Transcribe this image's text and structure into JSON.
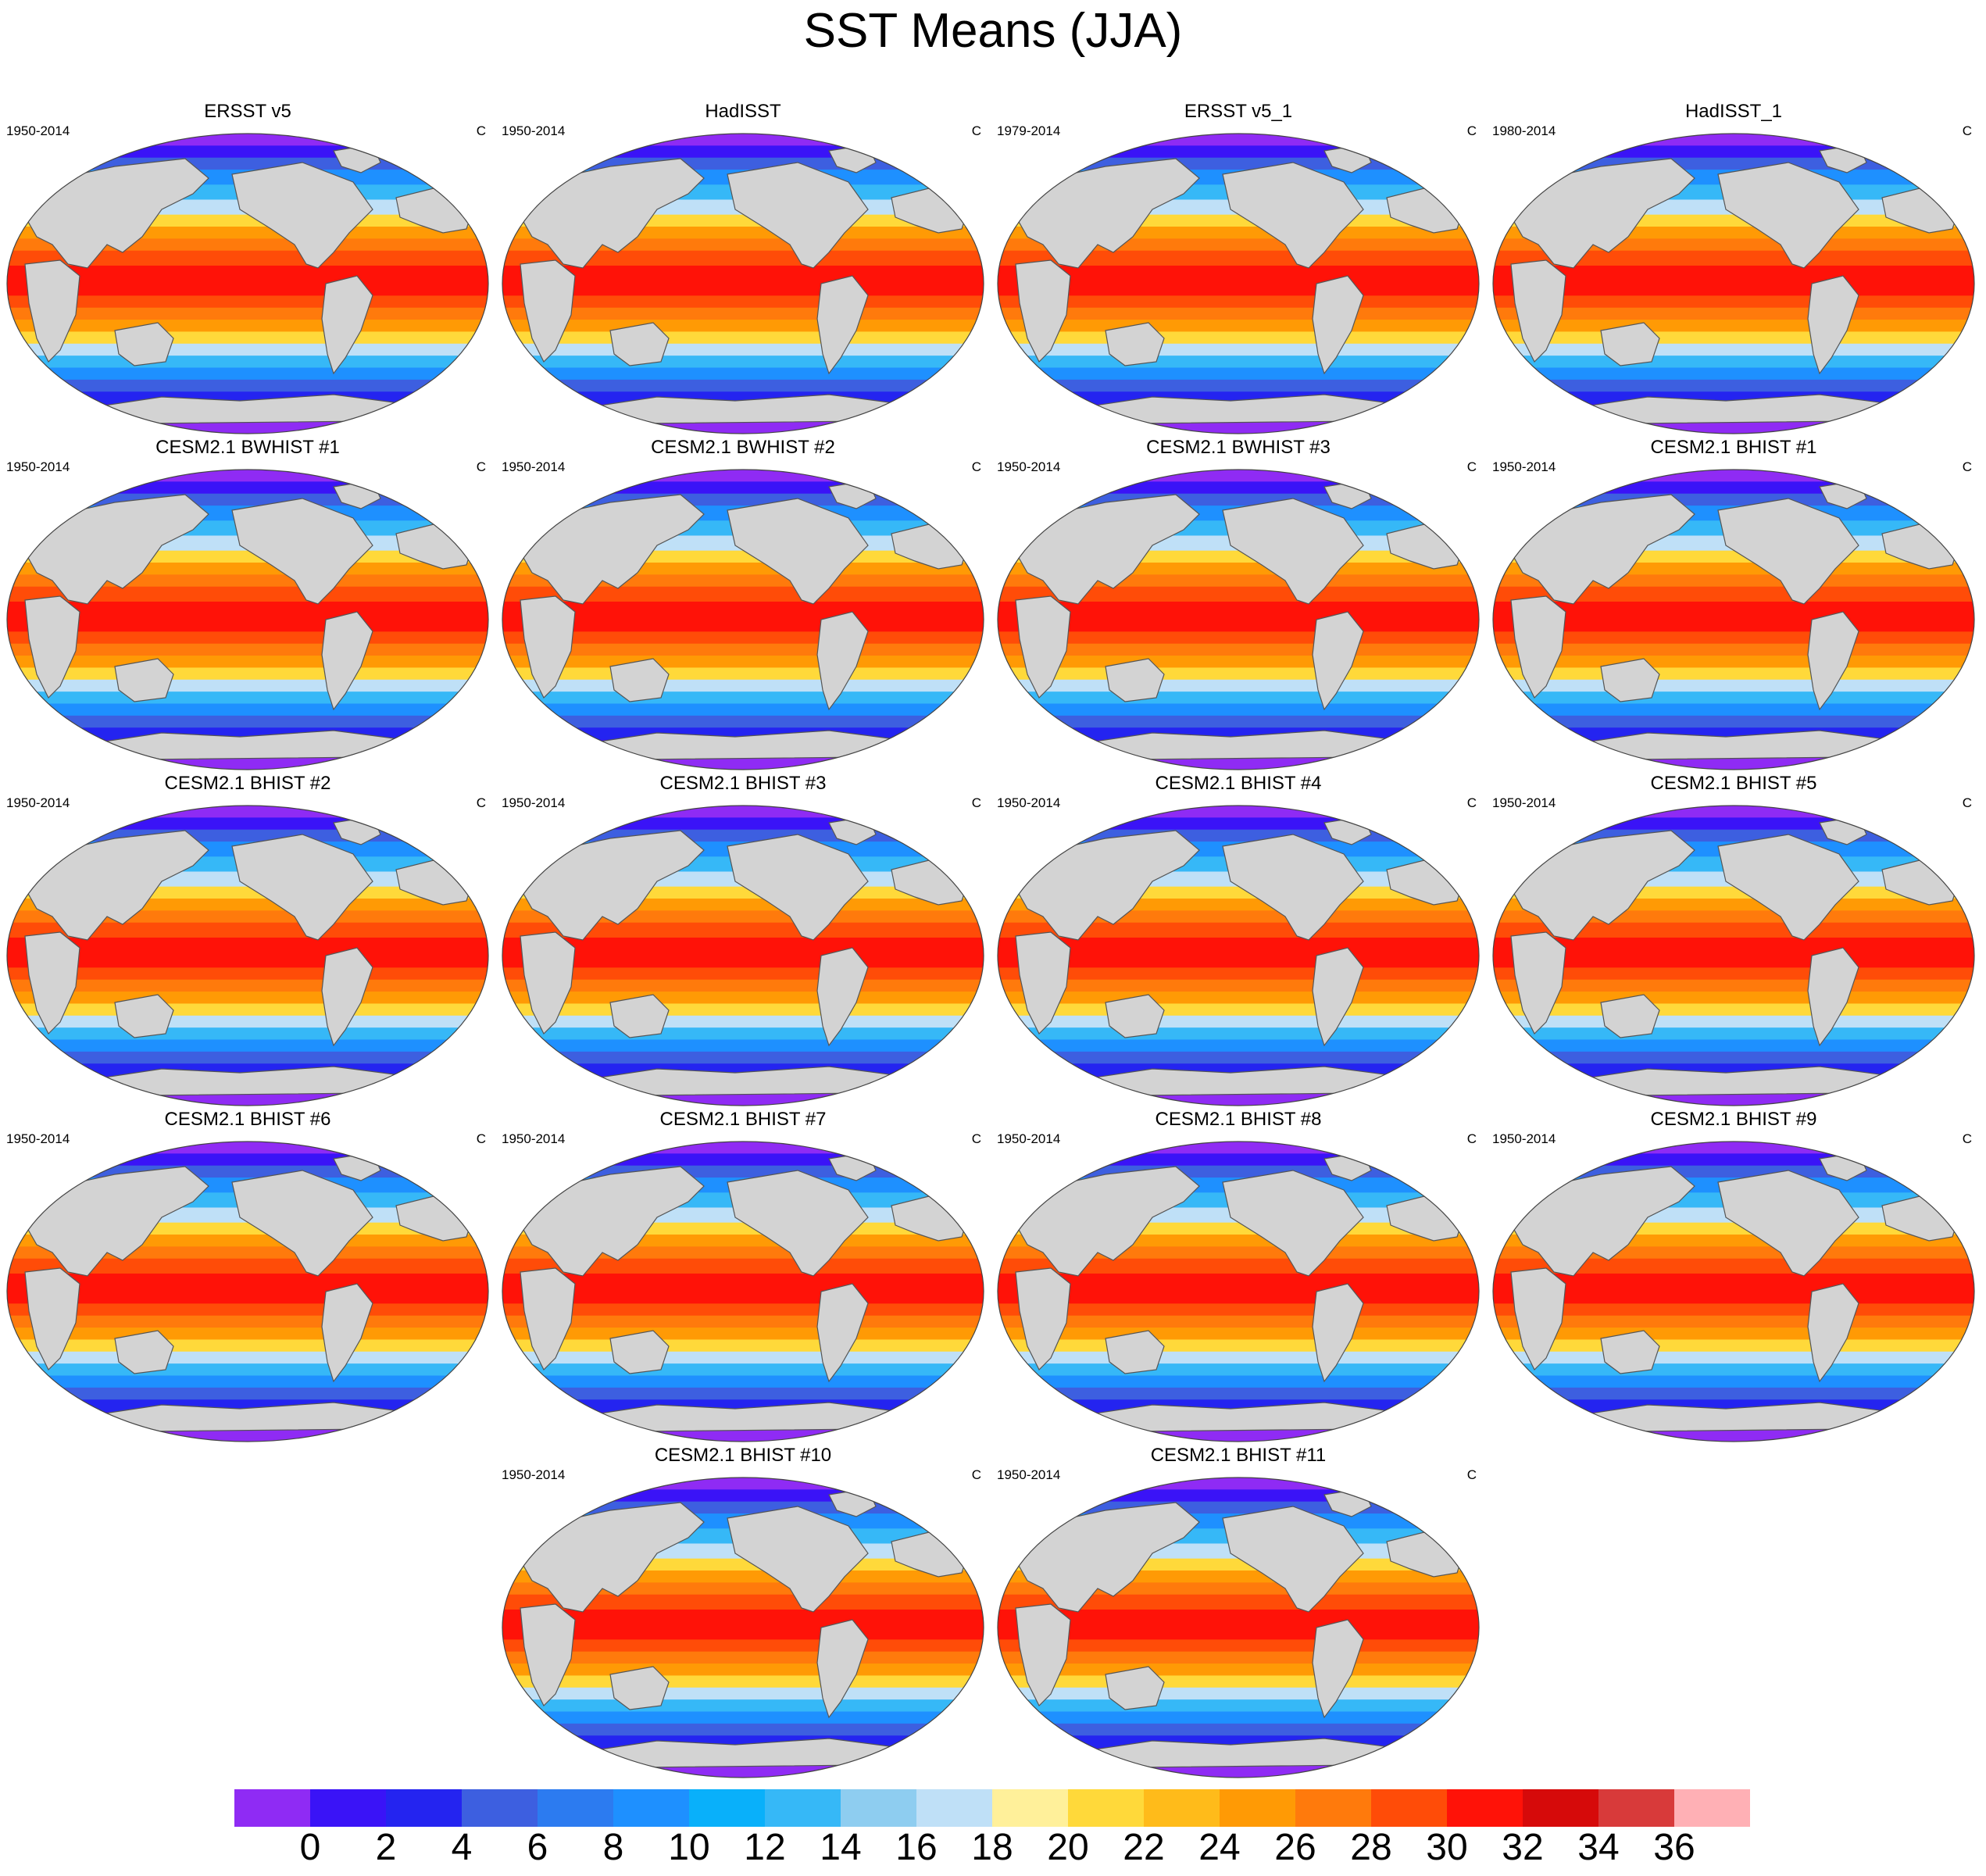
{
  "figure": {
    "title": "SST Means (JJA)"
  },
  "panels": [
    {
      "title": "ERSST v5",
      "period": "1950-2014",
      "units": "C"
    },
    {
      "title": "HadISST",
      "period": "1950-2014",
      "units": "C"
    },
    {
      "title": "ERSST v5_1",
      "period": "1979-2014",
      "units": "C"
    },
    {
      "title": "HadISST_1",
      "period": "1980-2014",
      "units": "C"
    },
    {
      "title": "CESM2.1 BWHIST #1",
      "period": "1950-2014",
      "units": "C"
    },
    {
      "title": "CESM2.1 BWHIST #2",
      "period": "1950-2014",
      "units": "C"
    },
    {
      "title": "CESM2.1 BWHIST #3",
      "period": "1950-2014",
      "units": "C"
    },
    {
      "title": "CESM2.1 BHIST #1",
      "period": "1950-2014",
      "units": "C"
    },
    {
      "title": "CESM2.1 BHIST #2",
      "period": "1950-2014",
      "units": "C"
    },
    {
      "title": "CESM2.1 BHIST #3",
      "period": "1950-2014",
      "units": "C"
    },
    {
      "title": "CESM2.1 BHIST #4",
      "period": "1950-2014",
      "units": "C"
    },
    {
      "title": "CESM2.1 BHIST #5",
      "period": "1950-2014",
      "units": "C"
    },
    {
      "title": "CESM2.1 BHIST #6",
      "period": "1950-2014",
      "units": "C"
    },
    {
      "title": "CESM2.1 BHIST #7",
      "period": "1950-2014",
      "units": "C"
    },
    {
      "title": "CESM2.1 BHIST #8",
      "period": "1950-2014",
      "units": "C"
    },
    {
      "title": "CESM2.1 BHIST #9",
      "period": "1950-2014",
      "units": "C"
    },
    {
      "title": "CESM2.1 BHIST #10",
      "period": "1950-2014",
      "units": "C"
    },
    {
      "title": "CESM2.1 BHIST #11",
      "period": "1950-2014",
      "units": "C"
    }
  ],
  "colorbar": {
    "labels": [
      "0",
      "2",
      "4",
      "6",
      "8",
      "10",
      "12",
      "14",
      "16",
      "18",
      "20",
      "22",
      "24",
      "26",
      "28",
      "30",
      "32",
      "34",
      "36"
    ],
    "colors": [
      "#8f2bf4",
      "#3a13f7",
      "#2424f0",
      "#3d5fe0",
      "#2c7bf0",
      "#1e90ff",
      "#09b0fa",
      "#36b8f7",
      "#8ecdf0",
      "#bfe0f7",
      "#fff09a",
      "#ffd93a",
      "#ffbb1a",
      "#ff9a05",
      "#ff7a0c",
      "#ff4c08",
      "#ff1208",
      "#d60a0a",
      "#d83a3a",
      "#ffb0b5"
    ]
  },
  "style": {
    "land": "#d3d3d3",
    "coast": "#555555"
  }
}
